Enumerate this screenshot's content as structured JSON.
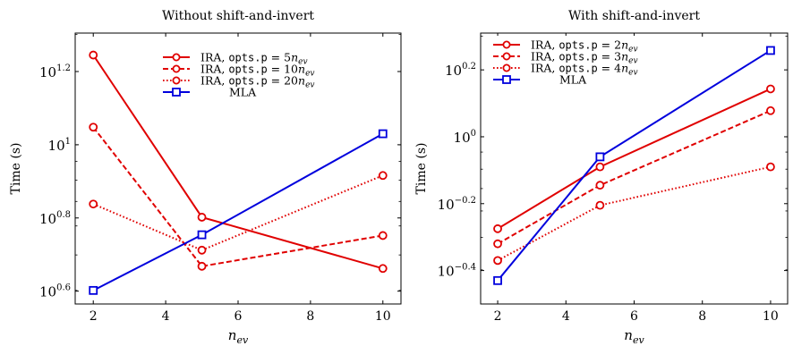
{
  "chart_data": [
    {
      "type": "line",
      "title": "Without shift-and-invert",
      "xlabel": "n_ev",
      "ylabel": "Time (s)",
      "y_scale": "log10",
      "xlim": [
        1.5,
        10.5
      ],
      "ylim_log10": [
        0.565,
        1.305
      ],
      "x_ticks": [
        2,
        4,
        6,
        8,
        10
      ],
      "y_ticks_exponent": [
        0.6,
        0.8,
        1,
        1.2
      ],
      "y_tick_labels": [
        "0.6",
        "0.8",
        "1",
        "1.2"
      ],
      "y_tick_base": "10",
      "legend_position": "top-right",
      "series": [
        {
          "name": "IRA, opts.p = 5n_ev",
          "label_text": "IRA,",
          "label_code": "opts.p",
          "label_eq": "= 5",
          "color": "#e00000",
          "dash": "solid",
          "marker": "circle",
          "x": [
            2,
            5,
            10
          ],
          "y_log10": [
            1.245,
            0.802,
            0.662
          ]
        },
        {
          "name": "IRA, opts.p = 10n_ev",
          "label_text": "IRA,",
          "label_code": "opts.p",
          "label_eq": "= 10",
          "color": "#e00000",
          "dash": "dashed",
          "marker": "circle",
          "x": [
            2,
            5,
            10
          ],
          "y_log10": [
            1.048,
            0.668,
            0.752
          ]
        },
        {
          "name": "IRA, opts.p = 20n_ev",
          "label_text": "IRA,",
          "label_code": "opts.p",
          "label_eq": "= 20",
          "color": "#e00000",
          "dash": "dotted",
          "marker": "circle",
          "x": [
            2,
            5,
            10
          ],
          "y_log10": [
            0.838,
            0.712,
            0.916
          ]
        },
        {
          "name": "MLA",
          "label_text": "MLA",
          "color": "#0000dd",
          "dash": "solid",
          "marker": "square",
          "x": [
            2,
            5,
            10
          ],
          "y_log10": [
            0.602,
            0.754,
            1.03
          ]
        }
      ]
    },
    {
      "type": "line",
      "title": "With shift-and-invert",
      "xlabel": "n_ev",
      "ylabel": "Time (s)",
      "y_scale": "log10",
      "xlim": [
        1.5,
        10.5
      ],
      "ylim_log10": [
        -0.5,
        0.31
      ],
      "x_ticks": [
        2,
        4,
        6,
        8,
        10
      ],
      "y_ticks_exponent": [
        -0.4,
        -0.2,
        0,
        0.2
      ],
      "y_tick_labels": [
        "−0.4",
        "−0.2",
        "0",
        "0.2"
      ],
      "y_tick_base": "10",
      "legend_position": "top-left",
      "series": [
        {
          "name": "IRA, opts.p = 2n_ev",
          "label_text": "IRA,",
          "label_code": "opts.p",
          "label_eq": "= 2",
          "color": "#e00000",
          "dash": "solid",
          "marker": "circle",
          "x": [
            2,
            5,
            10
          ],
          "y_log10": [
            -0.275,
            -0.09,
            0.143
          ]
        },
        {
          "name": "IRA, opts.p = 3n_ev",
          "label_text": "IRA,",
          "label_code": "opts.p",
          "label_eq": "= 3",
          "color": "#e00000",
          "dash": "dashed",
          "marker": "circle",
          "x": [
            2,
            5,
            10
          ],
          "y_log10": [
            -0.32,
            -0.145,
            0.078
          ]
        },
        {
          "name": "IRA, opts.p = 4n_ev",
          "label_text": "IRA,",
          "label_code": "opts.p",
          "label_eq": "= 4",
          "color": "#e00000",
          "dash": "dotted",
          "marker": "circle",
          "x": [
            2,
            5,
            10
          ],
          "y_log10": [
            -0.37,
            -0.205,
            -0.09
          ]
        },
        {
          "name": "MLA",
          "label_text": "MLA",
          "color": "#0000dd",
          "dash": "solid",
          "marker": "square",
          "x": [
            2,
            5,
            10
          ],
          "y_log10": [
            -0.43,
            -0.06,
            0.258
          ]
        }
      ]
    }
  ]
}
